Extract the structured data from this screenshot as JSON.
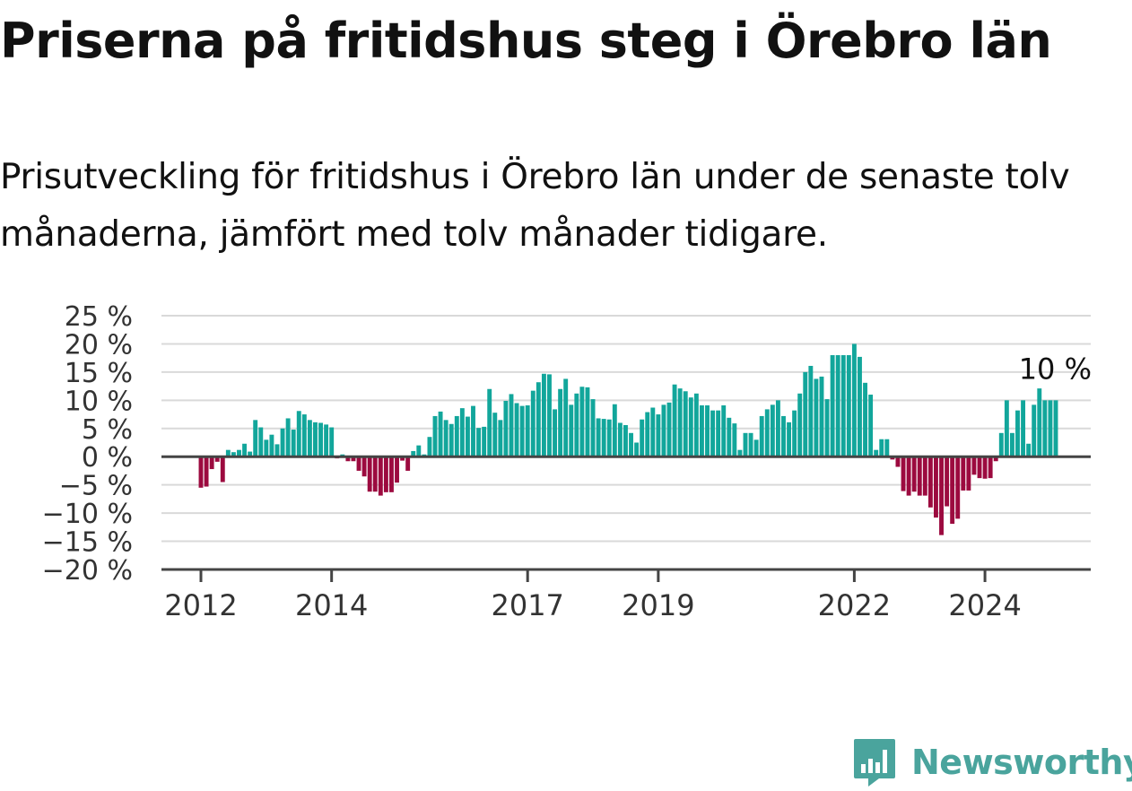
{
  "header": {
    "title": "Priserna på fritidshus steg i Örebro län",
    "subtitle": "Prisutveckling för fritidshus i Örebro län under de senaste tolv månaderna, jämfört med tolv månader tidigare."
  },
  "brand": {
    "name": "Newsworthy",
    "icon": "newsworthy-logo-icon",
    "color": "#4aa49d"
  },
  "colors": {
    "positive": "#12a69b",
    "negative": "#9c0a3f",
    "grid": "#d9d9d9",
    "axis": "#444444",
    "text": "#333333"
  },
  "chart_data": {
    "type": "bar",
    "title": "",
    "xlabel": "",
    "ylabel": "",
    "ylim": [
      -20,
      25
    ],
    "yticks": [
      25,
      20,
      15,
      10,
      5,
      0,
      -5,
      -10,
      -15,
      -20
    ],
    "ytick_labels": [
      "25 %",
      "20 %",
      "15 %",
      "10 %",
      "5 %",
      "0 %",
      "−5 %",
      "−10 %",
      "−15 %",
      "−20 %"
    ],
    "xtick_labels": [
      "2012",
      "2014",
      "2017",
      "2019",
      "2022",
      "2024"
    ],
    "grid": true,
    "annotation": {
      "text": "10 %",
      "value": 10
    },
    "start": "2012-01",
    "values": [
      -5.5,
      -5.3,
      -2.2,
      -0.9,
      -4.5,
      1.2,
      0.8,
      1.2,
      2.3,
      0.9,
      6.5,
      5.2,
      3.0,
      3.9,
      2.2,
      5.0,
      6.8,
      4.8,
      8.1,
      7.5,
      6.5,
      6.1,
      6.0,
      5.7,
      5.2,
      -0.3,
      0.4,
      -0.8,
      -0.8,
      -2.5,
      -3.5,
      -6.2,
      -6.2,
      -6.9,
      -6.3,
      -6.3,
      -4.6,
      -0.7,
      -2.5,
      1.0,
      2.0,
      0.4,
      3.5,
      7.2,
      8.0,
      6.5,
      5.8,
      7.2,
      8.6,
      7.1,
      9.0,
      5.1,
      5.3,
      12.0,
      7.8,
      6.5,
      9.9,
      11.1,
      9.5,
      9.0,
      9.1,
      11.7,
      13.2,
      14.7,
      14.6,
      8.4,
      12.0,
      13.8,
      9.2,
      11.2,
      12.4,
      12.3,
      10.2,
      6.8,
      6.7,
      6.6,
      9.3,
      6.0,
      5.6,
      4.2,
      2.5,
      6.6,
      7.9,
      8.7,
      7.5,
      9.2,
      9.6,
      12.8,
      12.1,
      11.6,
      10.5,
      11.2,
      9.1,
      9.1,
      8.2,
      8.2,
      9.1,
      6.9,
      5.9,
      1.2,
      4.2,
      4.2,
      3.0,
      7.2,
      8.4,
      9.2,
      10.0,
      7.2,
      6.1,
      8.2,
      11.2,
      15.0,
      16.1,
      13.8,
      14.2,
      10.2,
      18.0,
      18.0,
      18.0,
      18.0,
      20.0,
      17.7,
      13.1,
      11.0,
      1.2,
      3.1,
      3.1,
      -0.5,
      -1.8,
      -6.1,
      -6.9,
      -6.2,
      -6.9,
      -6.9,
      -9.0,
      -10.8,
      -13.9,
      -8.8,
      -11.9,
      -11.0,
      -6.0,
      -6.0,
      -3.2,
      -3.8,
      -3.9,
      -3.8,
      -0.8,
      4.2,
      10.0,
      4.2,
      8.2,
      10.0,
      2.3,
      9.2,
      12.1,
      10.0,
      10.0,
      10.0
    ]
  }
}
